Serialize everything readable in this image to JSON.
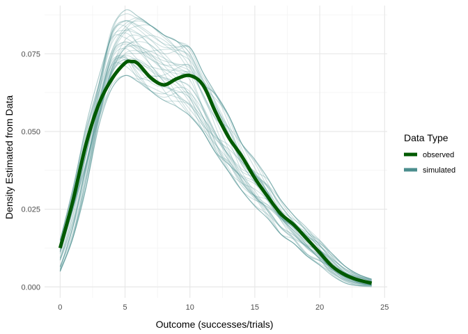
{
  "chart_data": {
    "type": "line",
    "xlabel": "Outcome (successes/trials)",
    "ylabel": "Density Estimated from Data",
    "xlim": [
      -1.2,
      25.2
    ],
    "ylim": [
      -0.0035,
      0.0905
    ],
    "x_ticks": [
      0,
      5,
      10,
      15,
      20,
      25
    ],
    "x_tick_labels": [
      "0",
      "5",
      "10",
      "15",
      "20",
      "25"
    ],
    "y_ticks": [
      0.0,
      0.025,
      0.05,
      0.075
    ],
    "y_tick_labels": [
      "0.000",
      "0.025",
      "0.050",
      "0.075"
    ],
    "grid": true,
    "legend": {
      "title": "Data Type",
      "position": "right",
      "entries": [
        {
          "label": "observed",
          "color": "#005a00"
        },
        {
          "label": "simulated",
          "color": "#4b8e8e"
        }
      ]
    },
    "series": [
      {
        "name": "observed",
        "color": "#005a00",
        "x": [
          0,
          1,
          2,
          3,
          4,
          5,
          5.5,
          6,
          7,
          8,
          9,
          10,
          11,
          12,
          13,
          14,
          15,
          16,
          17,
          18,
          19,
          20,
          21,
          22,
          23,
          24
        ],
        "y": [
          0.0125,
          0.028,
          0.046,
          0.059,
          0.067,
          0.072,
          0.0725,
          0.0718,
          0.0672,
          0.065,
          0.067,
          0.068,
          0.065,
          0.056,
          0.048,
          0.042,
          0.035,
          0.029,
          0.0235,
          0.02,
          0.0155,
          0.011,
          0.0065,
          0.0038,
          0.0022,
          0.0012
        ]
      }
    ],
    "simulated": {
      "name": "simulated",
      "color": "#4b8e8e",
      "count": 40,
      "x": [
        0,
        1,
        2,
        3,
        4,
        5,
        6,
        7,
        8,
        9,
        10,
        11,
        12,
        13,
        14,
        15,
        16,
        17,
        18,
        19,
        20,
        21,
        22,
        23,
        24
      ],
      "y_band_low": [
        0.005,
        0.016,
        0.032,
        0.052,
        0.064,
        0.068,
        0.066,
        0.063,
        0.06,
        0.058,
        0.055,
        0.05,
        0.043,
        0.037,
        0.031,
        0.026,
        0.022,
        0.017,
        0.014,
        0.01,
        0.007,
        0.0035,
        0.0012,
        0.0004,
        0.0001
      ],
      "y_band_high": [
        0.015,
        0.032,
        0.052,
        0.068,
        0.085,
        0.089,
        0.087,
        0.084,
        0.081,
        0.079,
        0.077,
        0.069,
        0.062,
        0.055,
        0.046,
        0.041,
        0.035,
        0.028,
        0.023,
        0.019,
        0.015,
        0.0105,
        0.0065,
        0.004,
        0.0025
      ]
    }
  }
}
